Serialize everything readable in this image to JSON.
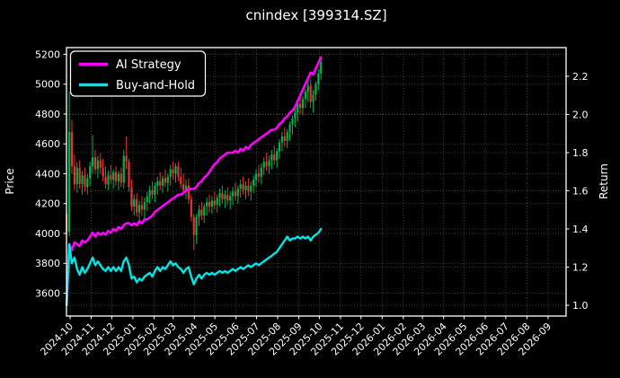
{
  "title": "cnindex [399314.SZ]",
  "axes": {
    "left_label": "Price",
    "right_label": "Return",
    "price_ticks": [
      3600,
      3800,
      4000,
      4200,
      4400,
      4600,
      4800,
      5000,
      5200
    ],
    "return_ticks": [
      "1.0",
      "1.2",
      "1.4",
      "1.6",
      "1.8",
      "2.0",
      "2.2"
    ],
    "x_ticks": [
      "2024-10",
      "2024-11",
      "2024-12",
      "2025-01",
      "2025-02",
      "2025-03",
      "2025-04",
      "2025-05",
      "2025-06",
      "2025-07",
      "2025-08",
      "2025-09",
      "2025-10",
      "2025-11",
      "2025-12",
      "2026-01",
      "2026-02",
      "2026-03",
      "2026-04",
      "2026-05",
      "2026-06",
      "2026-07",
      "2026-08",
      "2026-09"
    ]
  },
  "legend": {
    "items": [
      {
        "label": "AI Strategy",
        "color": "#ff00ff"
      },
      {
        "label": "Buy-and-Hold",
        "color": "#00e5e5"
      }
    ]
  },
  "colors": {
    "background": "#000000",
    "text": "#ffffff",
    "grid": "#ffffff",
    "spine": "#ffffff",
    "candle_up": "#00b44c",
    "candle_down": "#e5352f",
    "ai_line": "#ff00ff",
    "bh_line": "#00e5e5"
  },
  "chart_data": {
    "type": "candlestick+line",
    "title": "cnindex [399314.SZ]",
    "xlabel": "",
    "ylabel_left": "Price",
    "ylabel_right": "Return",
    "x_axis_start": "2024-10",
    "x_axis_end": "2026-09",
    "price_axis_ticks": [
      3600,
      3800,
      4000,
      4200,
      4400,
      4600,
      4800,
      5000,
      5200
    ],
    "return_axis_ticks": [
      1.0,
      1.2,
      1.4,
      1.6,
      1.8,
      2.0,
      2.2
    ],
    "grid": true,
    "legend_position": "upper left",
    "first_candle_day_offset": -5,
    "candle_step_days": 3.8,
    "candles_ohlc": [
      [
        4130,
        4150,
        3990,
        4010
      ],
      [
        4010,
        4950,
        3980,
        4680
      ],
      [
        4680,
        4760,
        4400,
        4450
      ],
      [
        4450,
        4530,
        4290,
        4330
      ],
      [
        4330,
        4480,
        4270,
        4440
      ],
      [
        4440,
        4490,
        4300,
        4330
      ],
      [
        4330,
        4420,
        4260,
        4390
      ],
      [
        4390,
        4440,
        4280,
        4310
      ],
      [
        4310,
        4400,
        4260,
        4370
      ],
      [
        4370,
        4480,
        4320,
        4450
      ],
      [
        4450,
        4660,
        4400,
        4510
      ],
      [
        4510,
        4560,
        4400,
        4430
      ],
      [
        4430,
        4520,
        4370,
        4490
      ],
      [
        4490,
        4540,
        4400,
        4440
      ],
      [
        4440,
        4500,
        4350,
        4380
      ],
      [
        4380,
        4450,
        4300,
        4330
      ],
      [
        4330,
        4420,
        4290,
        4390
      ],
      [
        4390,
        4460,
        4330,
        4360
      ],
      [
        4360,
        4430,
        4300,
        4410
      ],
      [
        4410,
        4450,
        4320,
        4350
      ],
      [
        4350,
        4420,
        4290,
        4400
      ],
      [
        4400,
        4440,
        4310,
        4340
      ],
      [
        4340,
        4560,
        4300,
        4520
      ],
      [
        4520,
        4650,
        4430,
        4480
      ],
      [
        4480,
        4500,
        4280,
        4310
      ],
      [
        4310,
        4360,
        4150,
        4180
      ],
      [
        4180,
        4260,
        4120,
        4230
      ],
      [
        4230,
        4270,
        4110,
        4140
      ],
      [
        4140,
        4220,
        4080,
        4190
      ],
      [
        4190,
        4250,
        4120,
        4160
      ],
      [
        4160,
        4240,
        4100,
        4210
      ],
      [
        4210,
        4280,
        4150,
        4250
      ],
      [
        4250,
        4320,
        4200,
        4290
      ],
      [
        4290,
        4350,
        4230,
        4260
      ],
      [
        4260,
        4340,
        4210,
        4320
      ],
      [
        4320,
        4380,
        4260,
        4350
      ],
      [
        4350,
        4410,
        4290,
        4320
      ],
      [
        4320,
        4390,
        4270,
        4370
      ],
      [
        4370,
        4430,
        4310,
        4340
      ],
      [
        4340,
        4400,
        4280,
        4380
      ],
      [
        4380,
        4460,
        4320,
        4430
      ],
      [
        4430,
        4480,
        4360,
        4400
      ],
      [
        4400,
        4470,
        4340,
        4450
      ],
      [
        4450,
        4480,
        4350,
        4380
      ],
      [
        4380,
        4440,
        4300,
        4330
      ],
      [
        4330,
        4400,
        4260,
        4290
      ],
      [
        4290,
        4360,
        4230,
        4320
      ],
      [
        4320,
        4370,
        4200,
        4230
      ],
      [
        4230,
        4260,
        4080,
        4110
      ],
      [
        4110,
        4130,
        3890,
        3990
      ],
      [
        3990,
        4130,
        3930,
        4110
      ],
      [
        4110,
        4190,
        4050,
        4160
      ],
      [
        4160,
        4210,
        4090,
        4120
      ],
      [
        4120,
        4200,
        4070,
        4180
      ],
      [
        4180,
        4240,
        4120,
        4210
      ],
      [
        4210,
        4260,
        4140,
        4180
      ],
      [
        4180,
        4250,
        4130,
        4220
      ],
      [
        4220,
        4280,
        4160,
        4190
      ],
      [
        4190,
        4260,
        4140,
        4240
      ],
      [
        4240,
        4300,
        4180,
        4270
      ],
      [
        4270,
        4320,
        4200,
        4230
      ],
      [
        4230,
        4290,
        4170,
        4260
      ],
      [
        4260,
        4310,
        4190,
        4220
      ],
      [
        4220,
        4280,
        4160,
        4250
      ],
      [
        4250,
        4310,
        4190,
        4280
      ],
      [
        4280,
        4340,
        4220,
        4250
      ],
      [
        4250,
        4320,
        4200,
        4300
      ],
      [
        4300,
        4360,
        4240,
        4330
      ],
      [
        4330,
        4380,
        4260,
        4290
      ],
      [
        4290,
        4350,
        4230,
        4320
      ],
      [
        4320,
        4370,
        4250,
        4280
      ],
      [
        4280,
        4350,
        4220,
        4320
      ],
      [
        4320,
        4390,
        4270,
        4360
      ],
      [
        4360,
        4430,
        4310,
        4400
      ],
      [
        4400,
        4460,
        4340,
        4380
      ],
      [
        4380,
        4470,
        4330,
        4440
      ],
      [
        4440,
        4510,
        4390,
        4480
      ],
      [
        4480,
        4540,
        4420,
        4450
      ],
      [
        4450,
        4520,
        4400,
        4490
      ],
      [
        4490,
        4560,
        4430,
        4530
      ],
      [
        4530,
        4590,
        4460,
        4490
      ],
      [
        4490,
        4570,
        4440,
        4550
      ],
      [
        4550,
        4630,
        4500,
        4610
      ],
      [
        4610,
        4680,
        4550,
        4650
      ],
      [
        4650,
        4710,
        4580,
        4620
      ],
      [
        4620,
        4700,
        4570,
        4680
      ],
      [
        4680,
        4750,
        4620,
        4730
      ],
      [
        4730,
        4790,
        4660,
        4770
      ],
      [
        4770,
        4840,
        4710,
        4810
      ],
      [
        4810,
        4890,
        4750,
        4870
      ],
      [
        4870,
        4940,
        4800,
        4840
      ],
      [
        4840,
        4920,
        4790,
        4900
      ],
      [
        4900,
        4970,
        4840,
        4950
      ],
      [
        4950,
        5020,
        4880,
        4990
      ],
      [
        4990,
        5030,
        4840,
        4880
      ],
      [
        4880,
        4960,
        4810,
        4930
      ],
      [
        4930,
        5020,
        4890,
        5000
      ],
      [
        5000,
        5100,
        4960,
        5070
      ],
      [
        5070,
        5170,
        5030,
        5150
      ]
    ],
    "series": [
      {
        "name": "AI Strategy",
        "axis": "return",
        "values": [
          1.0,
          1.32,
          1.29,
          1.33,
          1.32,
          1.31,
          1.34,
          1.33,
          1.34,
          1.36,
          1.38,
          1.36,
          1.38,
          1.37,
          1.38,
          1.37,
          1.39,
          1.38,
          1.4,
          1.39,
          1.41,
          1.4,
          1.42,
          1.43,
          1.43,
          1.42,
          1.43,
          1.42,
          1.44,
          1.43,
          1.45,
          1.45,
          1.46,
          1.47,
          1.49,
          1.5,
          1.51,
          1.52,
          1.53,
          1.54,
          1.55,
          1.56,
          1.57,
          1.58,
          1.58,
          1.59,
          1.6,
          1.61,
          1.61,
          1.61,
          1.62,
          1.64,
          1.65,
          1.67,
          1.68,
          1.7,
          1.72,
          1.74,
          1.75,
          1.77,
          1.78,
          1.79,
          1.8,
          1.8,
          1.8,
          1.81,
          1.8,
          1.82,
          1.81,
          1.83,
          1.82,
          1.84,
          1.85,
          1.86,
          1.87,
          1.88,
          1.89,
          1.9,
          1.91,
          1.92,
          1.92,
          1.93,
          1.95,
          1.96,
          1.98,
          1.99,
          2.01,
          2.02,
          2.04,
          2.07,
          2.1,
          2.13,
          2.16,
          2.19,
          2.22,
          2.21,
          2.24,
          2.27,
          2.3
        ]
      },
      {
        "name": "Buy-and-Hold",
        "axis": "return",
        "values": [
          1.0,
          1.32,
          1.22,
          1.25,
          1.19,
          1.16,
          1.2,
          1.17,
          1.19,
          1.22,
          1.25,
          1.21,
          1.23,
          1.21,
          1.19,
          1.18,
          1.2,
          1.18,
          1.2,
          1.18,
          1.2,
          1.18,
          1.23,
          1.25,
          1.21,
          1.14,
          1.15,
          1.12,
          1.14,
          1.13,
          1.15,
          1.16,
          1.17,
          1.15,
          1.18,
          1.2,
          1.18,
          1.2,
          1.19,
          1.21,
          1.23,
          1.21,
          1.22,
          1.2,
          1.19,
          1.17,
          1.19,
          1.2,
          1.15,
          1.11,
          1.14,
          1.16,
          1.14,
          1.16,
          1.17,
          1.16,
          1.17,
          1.16,
          1.17,
          1.18,
          1.17,
          1.18,
          1.17,
          1.18,
          1.19,
          1.18,
          1.19,
          1.2,
          1.19,
          1.2,
          1.21,
          1.2,
          1.21,
          1.22,
          1.21,
          1.22,
          1.23,
          1.24,
          1.25,
          1.26,
          1.27,
          1.28,
          1.3,
          1.32,
          1.34,
          1.36,
          1.34,
          1.35,
          1.35,
          1.36,
          1.35,
          1.36,
          1.35,
          1.36,
          1.34,
          1.36,
          1.37,
          1.38,
          1.4
        ]
      }
    ]
  }
}
